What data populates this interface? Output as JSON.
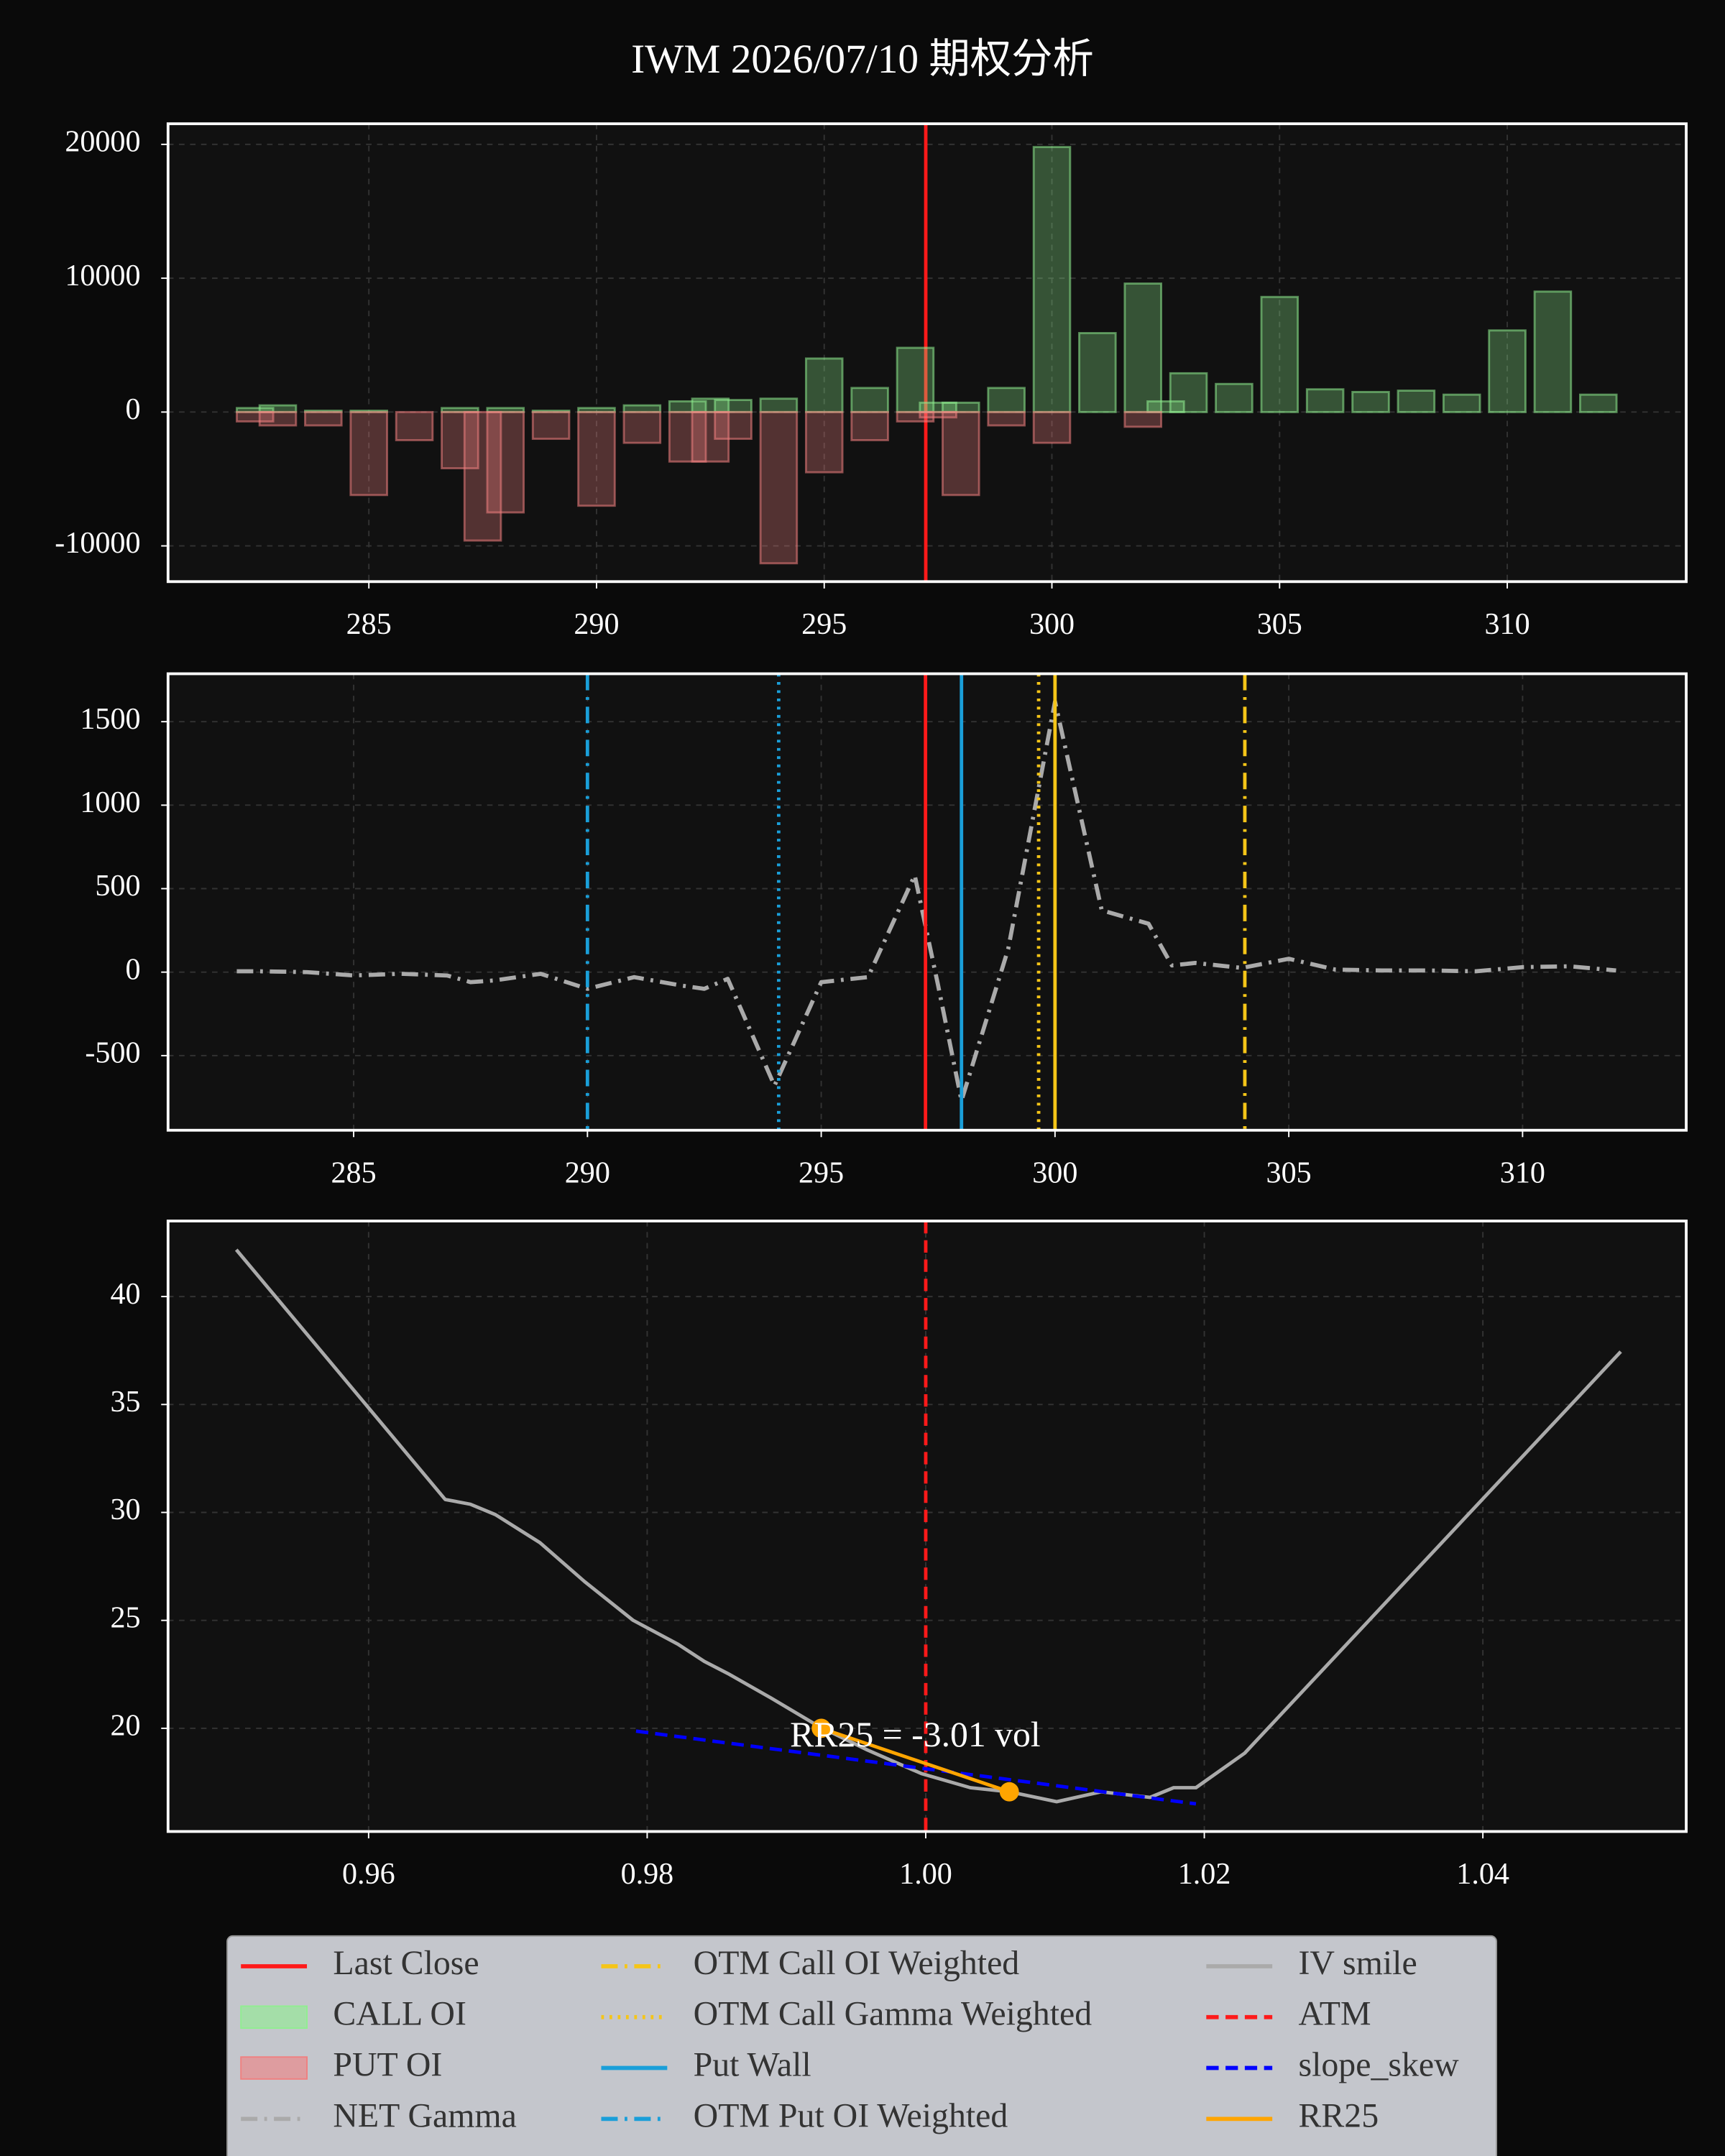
{
  "chart_data": [
    {
      "type": "bar",
      "title": "IWM 2026/07/10 期权分析",
      "grid": true,
      "x": [
        282.5,
        283,
        284,
        285,
        286,
        287,
        287.5,
        288,
        289,
        290,
        291,
        292,
        292.5,
        293,
        294,
        295,
        296,
        297,
        297.5,
        298,
        299,
        300,
        301,
        302,
        302.5,
        303,
        304,
        305,
        306,
        307,
        308,
        309,
        310,
        311,
        312
      ],
      "xlim": [
        280.59,
        313.93
      ],
      "xticks": [
        285,
        290,
        295,
        300,
        305,
        310
      ],
      "ylim": [
        -12670,
        21540
      ],
      "yticks": [
        20000,
        10000,
        0,
        -10000
      ],
      "series": [
        {
          "type": "vline",
          "name": "Last Close",
          "color": "#ff1a1a",
          "style": "solid",
          "value": 297.23
        },
        {
          "type": "bar",
          "name": "CALL OI",
          "color": "#90ee90",
          "values": [
            300,
            500,
            100,
            100,
            0,
            300,
            0,
            300,
            100,
            300,
            500,
            800,
            1000,
            900,
            1000,
            4000,
            1800,
            4800,
            700,
            700,
            1800,
            19800,
            5900,
            9600,
            800,
            2900,
            2100,
            8600,
            1700,
            1500,
            1600,
            1300,
            6100,
            9000,
            1300
          ]
        },
        {
          "type": "bar",
          "name": "PUT OI",
          "color": "#f08080",
          "values": [
            -700,
            -1000,
            -1000,
            -6200,
            -2100,
            -4200,
            -9600,
            -7500,
            -2000,
            -7000,
            -2300,
            -3700,
            -3700,
            -2000,
            -11300,
            -4500,
            -2100,
            -700,
            -400,
            -6200,
            -1000,
            -2300,
            0,
            -1100,
            0,
            0,
            0,
            0,
            0,
            0,
            0,
            0,
            0,
            0,
            0
          ]
        }
      ]
    },
    {
      "type": "line",
      "grid": true,
      "x": [
        282.5,
        283,
        284,
        285,
        286,
        287,
        287.5,
        288,
        289,
        290,
        291,
        292,
        292.5,
        293,
        294,
        295,
        296,
        297,
        297.5,
        298,
        299,
        300,
        301,
        302,
        302.5,
        303,
        304,
        305,
        306,
        307,
        308,
        309,
        310,
        311,
        312
      ],
      "xlim": [
        281.03,
        313.5
      ],
      "xticks": [
        285,
        290,
        295,
        300,
        305,
        310
      ],
      "ylim": [
        -947,
        1787
      ],
      "yticks": [
        1500,
        1000,
        500,
        0,
        -500
      ],
      "series": [
        {
          "type": "line",
          "name": "NET Gamma",
          "color": "#aaaaaa",
          "style": "dashdot",
          "values": [
            5,
            5,
            0,
            -20,
            -10,
            -20,
            -60,
            -50,
            -10,
            -100,
            -30,
            -80,
            -100,
            -40,
            -680,
            -60,
            -30,
            580,
            -80,
            -770,
            140,
            1620,
            370,
            290,
            40,
            55,
            25,
            80,
            15,
            10,
            10,
            5,
            30,
            35,
            10
          ]
        },
        {
          "type": "vline",
          "name": "OTM Call OI Weighted",
          "color": "#f5c518",
          "style": "dashdot",
          "value": 304.06
        },
        {
          "type": "vline",
          "name": "OTM Call Gamma Weighted",
          "color": "#f5c518",
          "style": "dotted",
          "value": 299.65
        },
        {
          "type": "vline",
          "name": "Put Wall",
          "color": "#1a9fd9",
          "style": "solid",
          "value": 298
        },
        {
          "type": "vline",
          "name": "OTM Put OI Weighted",
          "color": "#1a9fd9",
          "style": "dashdot",
          "value": 290
        },
        {
          "type": "vline",
          "color": "#f5c518",
          "style": "solid",
          "value": 300
        },
        {
          "type": "vline",
          "color": "#1a9fd9",
          "style": "dotted",
          "value": 294.09
        },
        {
          "type": "vline",
          "color": "#ff1a1a",
          "style": "solid",
          "value": 297.23
        }
      ]
    },
    {
      "type": "line",
      "grid": true,
      "annotation": "RR25 = -3.01 vol",
      "xlim": [
        0.9456,
        1.0546
      ],
      "xticks": [
        0.96,
        0.98,
        {
          "value": 1,
          "label": "1.00"
        },
        1.02,
        1.04
      ],
      "ylim": [
        15.22,
        43.5
      ],
      "yticks": [
        20,
        25,
        30,
        35,
        40
      ],
      "series": [
        {
          "type": "line",
          "name": "IV smile",
          "color": "#aaaaaa",
          "style": "solid",
          "x": [
            0.9505,
            0.9655,
            0.9673,
            0.9691,
            0.9723,
            0.9755,
            0.979,
            0.9822,
            0.9841,
            0.9859,
            0.9889,
            0.9923,
            0.9958,
            0.9997,
            1.0032,
            1.006,
            1.0094,
            1.0126,
            1.0161,
            1.0178,
            1.0194,
            1.0229,
            1.0499
          ],
          "values": [
            42.17,
            30.6,
            30.38,
            29.9,
            28.6,
            26.8,
            25.0,
            23.9,
            23.1,
            22.5,
            21.4,
            20.1,
            19.0,
            17.9,
            17.25,
            17.06,
            16.6,
            17.06,
            16.8,
            17.25,
            17.25,
            18.85,
            37.45
          ]
        },
        {
          "type": "vline",
          "name": "ATM",
          "color": "#ff1a1a",
          "style": "dashed",
          "value": 1
        },
        {
          "type": "line",
          "name": "slope_skew",
          "color": "#0000ff",
          "style": "dashed",
          "x": [
            0.9792,
            1.0194
          ],
          "values": [
            19.87,
            16.5
          ]
        },
        {
          "type": "line",
          "name": "RR25",
          "color": "#ffa500",
          "style": "solid",
          "markers": true,
          "x": [
            0.9925,
            1.006
          ],
          "values": [
            20.0,
            17.06
          ]
        }
      ]
    }
  ]
}
